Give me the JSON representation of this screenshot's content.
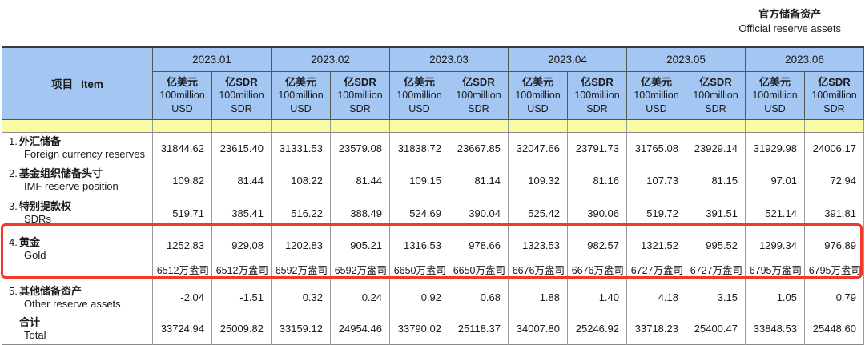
{
  "title": {
    "zh": "官方储备资产",
    "en": "Official reserve assets"
  },
  "colors": {
    "header_blue": "#a3c6f2",
    "band_yellow": "#fafaa2",
    "highlight_red": "#f1392c",
    "grid_gray": "#999999"
  },
  "table": {
    "item_header": {
      "zh": "项目",
      "en": "Item"
    },
    "months": [
      "2023.01",
      "2023.02",
      "2023.03",
      "2023.04",
      "2023.05",
      "2023.06"
    ],
    "unit_usd": {
      "l1": "亿美元",
      "l2": "100million",
      "l3": "USD"
    },
    "unit_sdr": {
      "l1": "亿SDR",
      "l2": "100million",
      "l3": "SDR"
    },
    "rows": [
      {
        "num": "1.",
        "zh": "外汇储备",
        "en": "Foreign currency reserves",
        "values": [
          "31844.62",
          "23615.40",
          "31331.53",
          "23579.08",
          "31838.72",
          "23667.85",
          "32047.66",
          "23791.73",
          "31765.08",
          "23929.14",
          "31929.98",
          "24006.17"
        ]
      },
      {
        "num": "2.",
        "zh": "基金组织储备头寸",
        "en": "IMF reserve position",
        "values": [
          "109.82",
          "81.44",
          "108.22",
          "81.44",
          "109.15",
          "81.14",
          "109.32",
          "81.16",
          "107.73",
          "81.15",
          "97.01",
          "72.94"
        ]
      },
      {
        "num": "3.",
        "zh": "特别提款权",
        "en": "SDRs",
        "values": [
          "519.71",
          "385.41",
          "516.22",
          "388.49",
          "524.69",
          "390.04",
          "525.42",
          "390.06",
          "519.72",
          "391.51",
          "521.14",
          "391.81"
        ]
      },
      {
        "num": "4.",
        "zh": "黄金",
        "en": "Gold",
        "values": [
          "1252.83",
          "929.08",
          "1202.83",
          "905.21",
          "1316.53",
          "978.66",
          "1323.53",
          "982.57",
          "1321.52",
          "995.52",
          "1299.34",
          "976.89"
        ],
        "ounces": [
          "6512万盎司",
          "6512万盎司",
          "6592万盎司",
          "6592万盎司",
          "6650万盎司",
          "6650万盎司",
          "6676万盎司",
          "6676万盎司",
          "6727万盎司",
          "6727万盎司",
          "6795万盎司",
          "6795万盎司"
        ]
      },
      {
        "num": "5.",
        "zh": "其他储备资产",
        "en": "Other reserve assets",
        "values": [
          "-2.04",
          "-1.51",
          "0.32",
          "0.24",
          "0.92",
          "0.68",
          "1.88",
          "1.40",
          "4.18",
          "3.15",
          "1.05",
          "0.79"
        ]
      },
      {
        "num": "",
        "zh": "合计",
        "en": "Total",
        "values": [
          "33724.94",
          "25009.82",
          "33159.12",
          "24954.46",
          "33790.02",
          "25118.37",
          "34007.80",
          "25246.92",
          "33718.23",
          "25400.47",
          "33848.53",
          "25448.60"
        ]
      }
    ]
  }
}
